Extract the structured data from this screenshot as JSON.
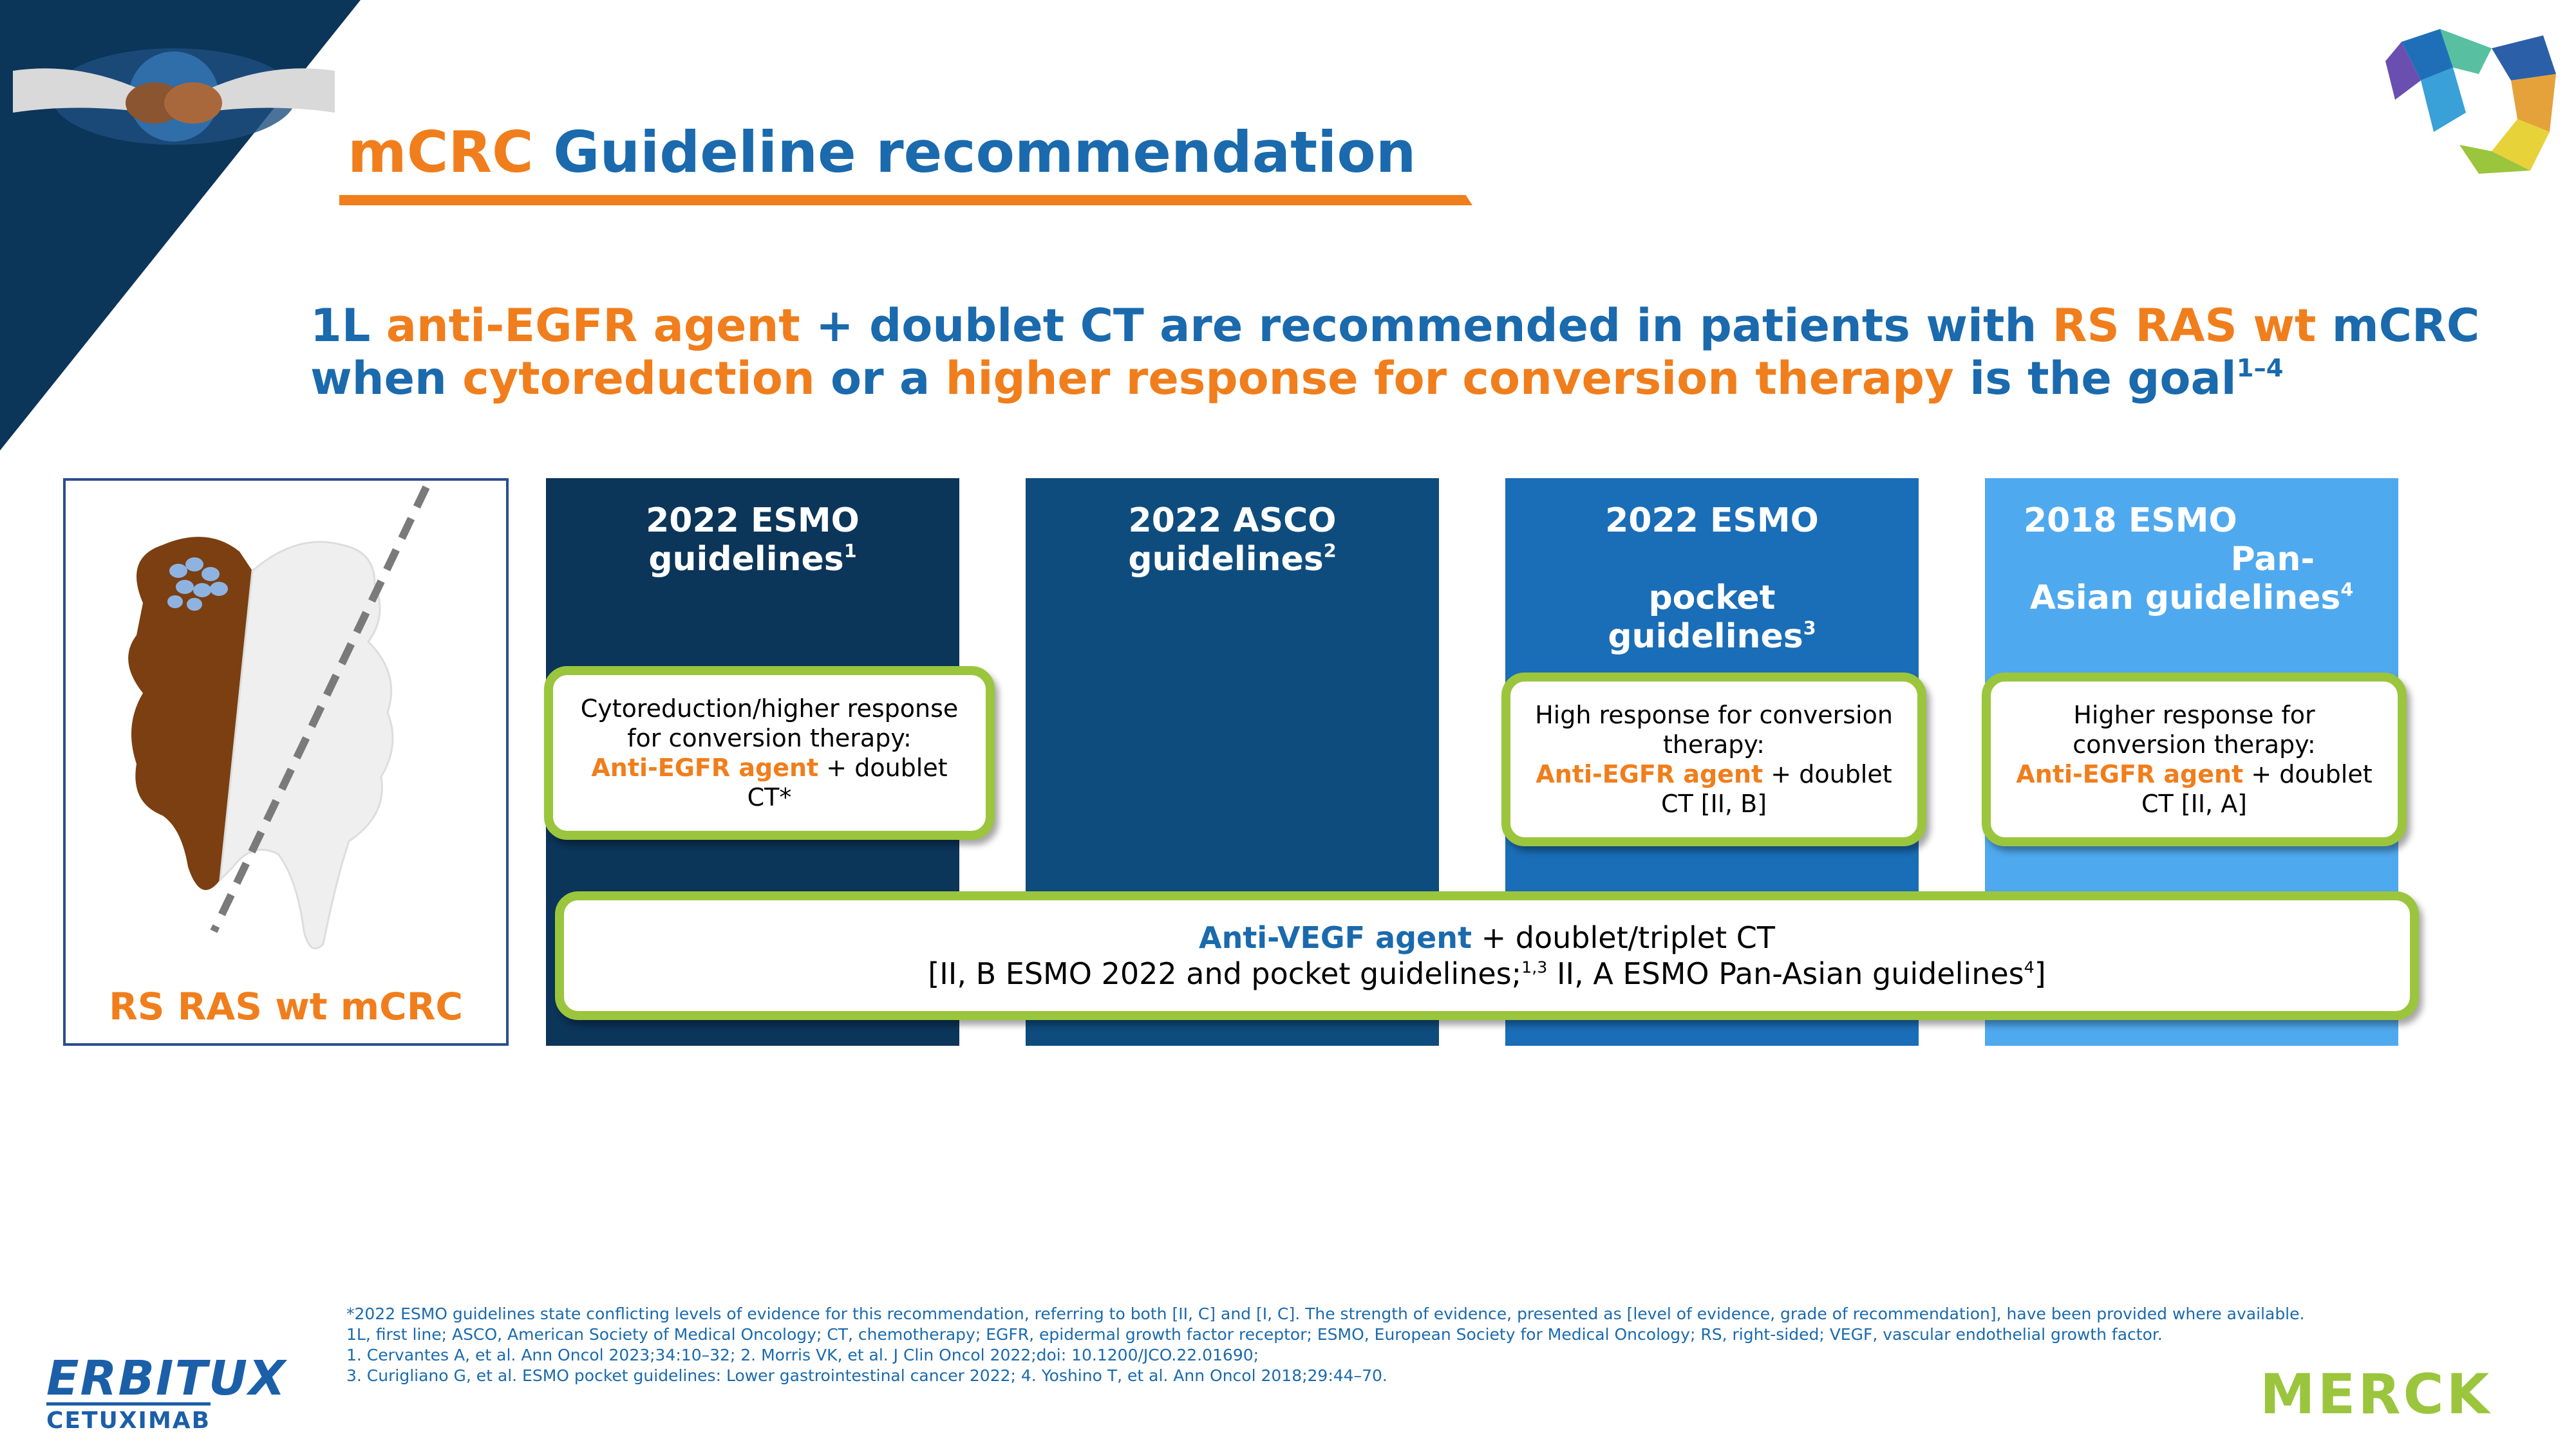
{
  "title": {
    "part1": "mCRC",
    "part2": "Guideline recommendation"
  },
  "headline": {
    "line1": [
      {
        "text": "1L ",
        "color": "blue"
      },
      {
        "text": "anti-EGFR agent",
        "color": "orange"
      },
      {
        "text": " + doublet CT are recommended in patients with ",
        "color": "blue"
      },
      {
        "text": "RS RAS wt",
        "color": "orange"
      },
      {
        "text": " mCRC",
        "color": "blue"
      }
    ],
    "line2": [
      {
        "text": "when ",
        "color": "blue"
      },
      {
        "text": "cytoreduction",
        "color": "orange"
      },
      {
        "text": " or a ",
        "color": "blue"
      },
      {
        "text": "higher response for conversion therapy",
        "color": "orange"
      },
      {
        "text": " is the goal",
        "color": "blue"
      }
    ],
    "refs": "1–4"
  },
  "colon_label": "RS RAS wt mCRC",
  "columns": [
    {
      "line1": "2022 ESMO",
      "line2": "guidelines",
      "ref": "1"
    },
    {
      "line1": "2022 ASCO",
      "line2": "guidelines",
      "ref": "2"
    },
    {
      "line1": "2022 ESMO",
      "line2": "pocket",
      "line3": "guidelines",
      "ref": "3"
    },
    {
      "line1": "2018 ESMO",
      "line2": "Pan-",
      "line3": "Asian guidelines",
      "ref": "4"
    }
  ],
  "callouts": {
    "esmo2022": {
      "line1": "Cytoreduction/higher response",
      "line2": "for conversion therapy:",
      "agent": "Anti-EGFR agent",
      "rest": " + doublet",
      "line4": "CT*"
    },
    "pocket": {
      "line1": "High response for conversion",
      "line2": "therapy:",
      "agent": "Anti-EGFR agent",
      "rest": " + doublet",
      "line4": "CT [II, B]"
    },
    "panasian": {
      "line1": "Higher response for",
      "line2": "conversion therapy:",
      "agent": "Anti-EGFR agent",
      "rest": " + doublet",
      "line4": "CT [II, A]"
    }
  },
  "vegf": {
    "agent": "Anti-VEGF agent",
    "rest": " + doublet/triplet CT",
    "line2_a": "[II, B ESMO 2022 and pocket guidelines;",
    "line2_ref1": "1,3",
    "line2_b": " II, A ESMO Pan-Asian guidelines",
    "line2_ref2": "4",
    "line2_c": "]"
  },
  "footnotes": [
    "*2022 ESMO guidelines state conflicting levels of evidence for this recommendation, referring to both [II, C] and [I, C]. The strength of evidence, presented as [level of evidence, grade of recommendation], have been provided where available.",
    "1L, first line; ASCO, American Society of Medical Oncology; CT, chemotherapy; EGFR, epidermal growth factor receptor; ESMO, European Society for Medical Oncology; RS, right-sided; VEGF, vascular endothelial growth factor.",
    "1. Cervantes A, et al. Ann Oncol 2023;34:10–32; 2. Morris VK, et al. J Clin Oncol 2022;doi: 10.1200/JCO.22.01690;",
    "3. Curigliano G, et al. ESMO pocket guidelines: Lower gastrointestinal cancer 2022; 4. Yoshino T, et al. Ann Oncol 2018;29:44–70."
  ],
  "logos": {
    "erbitux": "ERBITUX",
    "erbitux_sub": "CETUXIMAB",
    "merck": "MERCK"
  },
  "colors": {
    "orange": "#f07e1c",
    "blue": "#1a6aad",
    "green": "#9bc53d",
    "navy": "#0b3559"
  }
}
